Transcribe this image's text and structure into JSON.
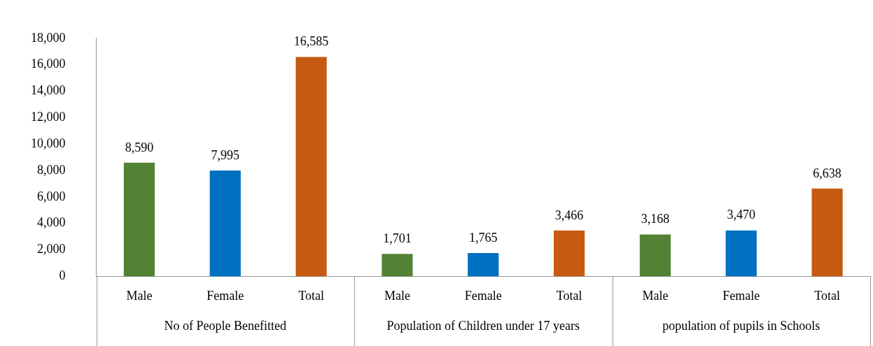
{
  "chart_data": {
    "type": "bar",
    "categories": [
      "Male",
      "Female",
      "Total",
      "Male",
      "Female",
      "Total",
      "Male",
      "Female",
      "Total"
    ],
    "values": [
      8590,
      7995,
      16585,
      1701,
      1765,
      3466,
      3168,
      3470,
      6638
    ],
    "colors": [
      "#548235",
      "#0070c0",
      "#c55a11",
      "#548235",
      "#0070c0",
      "#c55a11",
      "#548235",
      "#0070c0",
      "#c55a11"
    ],
    "ylim": [
      0,
      18000
    ],
    "yticks": [
      0,
      {
        "value": 2000,
        "label": "2,000"
      },
      {
        "value": 4000,
        "label": "4,000"
      },
      {
        "value": 6000,
        "label": "6,000"
      },
      {
        "value": 8000,
        "label": "8,000"
      },
      {
        "value": 10000,
        "label": "10,000"
      },
      {
        "value": 12000,
        "label": "12,000"
      },
      {
        "value": 14000,
        "label": "14,000"
      },
      {
        "value": 16000,
        "label": "16,000"
      },
      {
        "value": 18000,
        "label": "18,000"
      }
    ],
    "grid": false,
    "legend": false,
    "value_labels": [
      "8,590",
      "7,995",
      "16,585",
      "1,701",
      "1,765",
      "3,466",
      "3,168",
      "3,470",
      "6,638"
    ],
    "annotations": [
      "No of People Benefitted",
      "Population of Children under 17 years",
      "population of pupils in Schools"
    ]
  }
}
